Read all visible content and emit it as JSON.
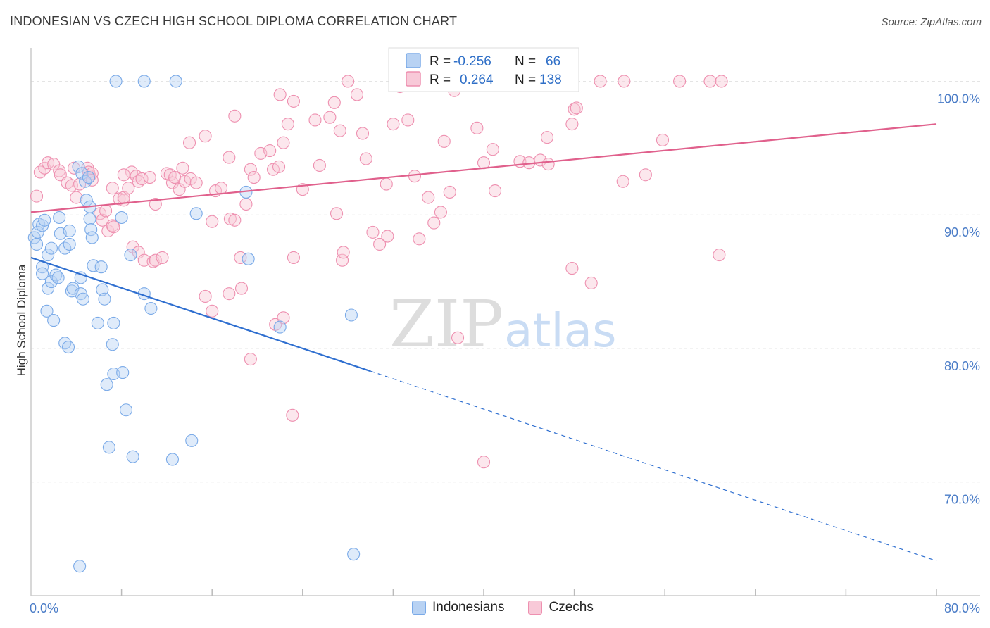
{
  "chart_data": {
    "type": "scatter",
    "title": "INDONESIAN VS CZECH HIGH SCHOOL DIPLOMA CORRELATION CHART",
    "source": "Source: ZipAtlas.com",
    "ylabel": "High School Diploma",
    "xlabel": "",
    "xlim": [
      0,
      80
    ],
    "ylim": [
      61.5,
      102.5
    ],
    "x_tick_labels": [
      "0.0%",
      "80.0%"
    ],
    "y_ticks": [
      70,
      80,
      90,
      100
    ],
    "y_tick_labels": [
      "70.0%",
      "80.0%",
      "90.0%",
      "100.0%"
    ],
    "watermark": {
      "zip": "ZIP",
      "atlas": "atlas"
    },
    "legend": {
      "r_label": "R =",
      "n_label": "N =",
      "entries": [
        {
          "name": "Indonesians",
          "r": "-0.256",
          "n": "66"
        },
        {
          "name": "Czechs",
          "r": "0.264",
          "n": "138"
        }
      ]
    },
    "series": [
      {
        "name": "Indonesians",
        "color": "#7aaae8",
        "fill": "#b8d2f3",
        "trend": {
          "x0": 0,
          "y0": 86.8,
          "x1": 30,
          "y1": 78.3,
          "dash_to_x": 80,
          "dash_to_y": 64.1,
          "color": "#2f6fd0"
        },
        "points": [
          [
            7.5,
            100
          ],
          [
            10,
            100
          ],
          [
            12.8,
            100
          ],
          [
            0.3,
            88.3
          ],
          [
            0.5,
            87.8
          ],
          [
            0.7,
            89.3
          ],
          [
            0.6,
            88.7
          ],
          [
            1.0,
            89.2
          ],
          [
            1.2,
            89.6
          ],
          [
            1.5,
            87.0
          ],
          [
            1.8,
            87.5
          ],
          [
            2.5,
            89.8
          ],
          [
            2.6,
            88.6
          ],
          [
            3.4,
            88.8
          ],
          [
            3.0,
            87.5
          ],
          [
            3.4,
            87.8
          ],
          [
            4.2,
            93.6
          ],
          [
            4.5,
            93.1
          ],
          [
            4.8,
            92.5
          ],
          [
            4.9,
            91.1
          ],
          [
            5.1,
            92.8
          ],
          [
            5.2,
            89.7
          ],
          [
            5.2,
            90.6
          ],
          [
            5.3,
            88.9
          ],
          [
            5.4,
            88.3
          ],
          [
            5.5,
            86.2
          ],
          [
            6.2,
            86.1
          ],
          [
            8.0,
            89.8
          ],
          [
            8.8,
            87.0
          ],
          [
            14.6,
            90.1
          ],
          [
            19.0,
            91.7
          ],
          [
            19.2,
            86.7
          ],
          [
            1.0,
            86.1
          ],
          [
            1.0,
            85.6
          ],
          [
            1.5,
            84.5
          ],
          [
            1.8,
            85.0
          ],
          [
            2.2,
            85.5
          ],
          [
            2.4,
            85.3
          ],
          [
            3.6,
            84.3
          ],
          [
            3.7,
            84.5
          ],
          [
            4.4,
            84.1
          ],
          [
            4.6,
            83.7
          ],
          [
            4.4,
            85.3
          ],
          [
            6.3,
            84.4
          ],
          [
            6.5,
            83.7
          ],
          [
            10,
            84.1
          ],
          [
            10.6,
            83.0
          ],
          [
            1.4,
            82.8
          ],
          [
            2.0,
            82.1
          ],
          [
            5.9,
            81.9
          ],
          [
            7.3,
            81.9
          ],
          [
            22,
            81.6
          ],
          [
            28.3,
            82.5
          ],
          [
            3.0,
            80.4
          ],
          [
            3.3,
            80.1
          ],
          [
            7.2,
            80.3
          ],
          [
            7.3,
            78.1
          ],
          [
            8.1,
            78.2
          ],
          [
            6.7,
            77.3
          ],
          [
            8.4,
            75.4
          ],
          [
            6.9,
            72.6
          ],
          [
            9.0,
            71.9
          ],
          [
            12.5,
            71.7
          ],
          [
            14.2,
            73.1
          ],
          [
            4.3,
            63.7
          ],
          [
            28.5,
            64.6
          ]
        ]
      },
      {
        "name": "Czechs",
        "color": "#ee90b0",
        "fill": "#f8c9d8",
        "trend": {
          "x0": 0,
          "y0": 90.2,
          "x1": 80,
          "y1": 96.8,
          "color": "#e0608c"
        },
        "points": [
          [
            0.5,
            91.4
          ],
          [
            0.8,
            93.2
          ],
          [
            1.2,
            93.5
          ],
          [
            1.5,
            93.9
          ],
          [
            2.0,
            93.8
          ],
          [
            2.5,
            93.3
          ],
          [
            2.6,
            93.0
          ],
          [
            3.2,
            92.4
          ],
          [
            3.6,
            92.2
          ],
          [
            3.8,
            93.5
          ],
          [
            4.0,
            91.3
          ],
          [
            4.3,
            92.3
          ],
          [
            5.2,
            92.9
          ],
          [
            5.0,
            93.5
          ],
          [
            5.1,
            93.2
          ],
          [
            5.4,
            93.1
          ],
          [
            5.4,
            92.6
          ],
          [
            6.1,
            90.1
          ],
          [
            6.3,
            89.6
          ],
          [
            6.6,
            90.3
          ],
          [
            6.8,
            88.8
          ],
          [
            7.2,
            89.2
          ],
          [
            7.3,
            89.1
          ],
          [
            7.2,
            92.0
          ],
          [
            7.8,
            91.2
          ],
          [
            8.2,
            91.1
          ],
          [
            8.2,
            91.3
          ],
          [
            8.6,
            92.0
          ],
          [
            8.9,
            93.2
          ],
          [
            9.3,
            92.9
          ],
          [
            9.5,
            92.5
          ],
          [
            9.8,
            92.7
          ],
          [
            10.5,
            92.8
          ],
          [
            11.0,
            90.8
          ],
          [
            12.0,
            93.1
          ],
          [
            12.3,
            93.0
          ],
          [
            12.5,
            92.4
          ],
          [
            12.7,
            92.8
          ],
          [
            13.1,
            91.9
          ],
          [
            13.6,
            92.5
          ],
          [
            13.4,
            93.5
          ],
          [
            14.1,
            92.7
          ],
          [
            14.6,
            92.4
          ],
          [
            15.4,
            95.9
          ],
          [
            14.0,
            95.4
          ],
          [
            16.0,
            89.5
          ],
          [
            16.3,
            91.8
          ],
          [
            16.8,
            92.0
          ],
          [
            17.6,
            89.7
          ],
          [
            17.5,
            94.3
          ],
          [
            18.0,
            89.6
          ],
          [
            18.0,
            97.4
          ],
          [
            19.0,
            90.8
          ],
          [
            19.4,
            93.4
          ],
          [
            19.7,
            92.8
          ],
          [
            20.3,
            94.6
          ],
          [
            21.1,
            94.8
          ],
          [
            21.4,
            93.4
          ],
          [
            21.9,
            93.6
          ],
          [
            22.3,
            95.4
          ],
          [
            22.7,
            96.8
          ],
          [
            22.0,
            99.0
          ],
          [
            23.2,
            98.5
          ],
          [
            24.0,
            91.9
          ],
          [
            25.1,
            97.1
          ],
          [
            25.5,
            93.7
          ],
          [
            26.4,
            97.3
          ],
          [
            26.8,
            98.4
          ],
          [
            27.3,
            96.3
          ],
          [
            27.0,
            90.1
          ],
          [
            28.0,
            100
          ],
          [
            28.8,
            99.0
          ],
          [
            29.3,
            96.1
          ],
          [
            29.6,
            94.2
          ],
          [
            30.2,
            88.7
          ],
          [
            30.8,
            87.8
          ],
          [
            31.4,
            92.3
          ],
          [
            31.5,
            88.4
          ],
          [
            32.0,
            96.8
          ],
          [
            32.6,
            99.6
          ],
          [
            33.3,
            97.1
          ],
          [
            33.9,
            92.9
          ],
          [
            34.3,
            88.2
          ],
          [
            35.1,
            91.3
          ],
          [
            35.6,
            89.4
          ],
          [
            36.2,
            90.2
          ],
          [
            36.5,
            95.5
          ],
          [
            37.4,
            99.3
          ],
          [
            37.0,
            91.7
          ],
          [
            39.3,
            99.8
          ],
          [
            39.4,
            96.5
          ],
          [
            40.0,
            93.9
          ],
          [
            40.8,
            94.9
          ],
          [
            41.0,
            91.8
          ],
          [
            43.2,
            94.0
          ],
          [
            44.0,
            93.9
          ],
          [
            45.0,
            94.1
          ],
          [
            45.6,
            95.8
          ],
          [
            45.7,
            93.8
          ],
          [
            46.0,
            99.8
          ],
          [
            48.0,
            97.9
          ],
          [
            47.8,
            96.8
          ],
          [
            48.2,
            98.0
          ],
          [
            50.3,
            100
          ],
          [
            52.4,
            100
          ],
          [
            52.3,
            92.5
          ],
          [
            54.3,
            93.0
          ],
          [
            55.8,
            95.6
          ],
          [
            57.3,
            100
          ],
          [
            60.0,
            100
          ],
          [
            61.0,
            100
          ],
          [
            8.2,
            93.0
          ],
          [
            9.0,
            87.6
          ],
          [
            9.5,
            87.2
          ],
          [
            10.0,
            86.6
          ],
          [
            10.8,
            86.5
          ],
          [
            11.0,
            86.6
          ],
          [
            11.6,
            86.8
          ],
          [
            15.4,
            83.9
          ],
          [
            16.0,
            82.8
          ],
          [
            17.5,
            84.1
          ],
          [
            18.6,
            84.5
          ],
          [
            18.5,
            86.8
          ],
          [
            21.6,
            81.8
          ],
          [
            22.3,
            82.3
          ],
          [
            23.2,
            86.8
          ],
          [
            27.5,
            86.6
          ],
          [
            27.6,
            87.2
          ],
          [
            37.7,
            80.8
          ],
          [
            47.8,
            86.0
          ],
          [
            49.5,
            84.9
          ],
          [
            60.8,
            87.0
          ],
          [
            19.4,
            79.2
          ],
          [
            23.1,
            75.0
          ],
          [
            40.0,
            71.5
          ]
        ]
      }
    ]
  }
}
